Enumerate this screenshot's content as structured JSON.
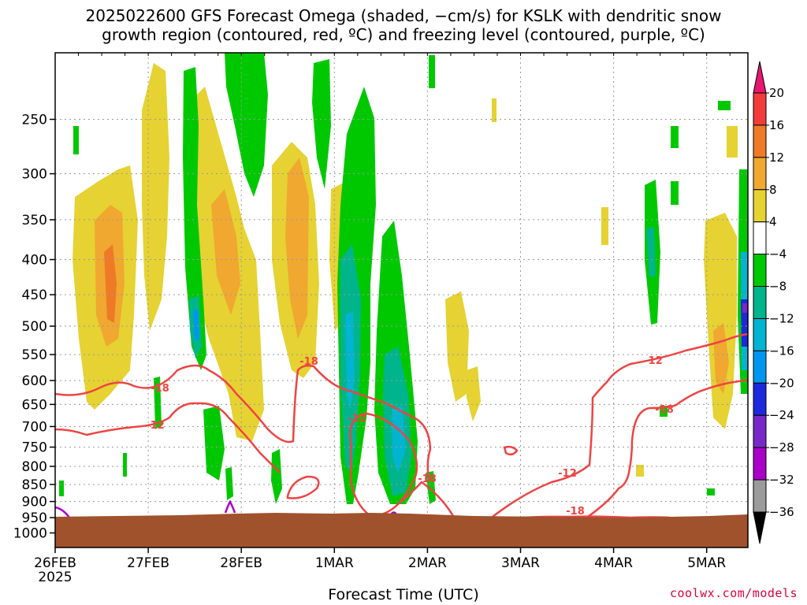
{
  "title_line1": "2025022600 GFS Forecast Omega (shaded, −cm/s) for KSLK with dendritic snow",
  "title_line2": "growth region (contoured, red, ºC) and freezing level (contoured, purple, ºC)",
  "credit": "coolwx.com/models",
  "chart_data": {
    "type": "heatmap",
    "xlabel": "Forecast Time (UTC)",
    "ylabel": "",
    "x_ticks": [
      "26FEB",
      "27FEB",
      "28FEB",
      "1MAR",
      "2MAR",
      "3MAR",
      "4MAR",
      "5MAR"
    ],
    "x_start_year": "2025",
    "y_scale": "log",
    "y_range": [
      1050,
      200
    ],
    "y_ticks": [
      250,
      300,
      350,
      400,
      450,
      500,
      550,
      600,
      650,
      700,
      750,
      800,
      850,
      900,
      950,
      1000
    ],
    "grid": true,
    "colorbar": {
      "ticks": [
        20,
        16,
        12,
        8,
        4,
        -4,
        -8,
        -12,
        -16,
        -20,
        -24,
        -28,
        -32,
        -36
      ],
      "colors": [
        "#e8166e",
        "#f23c3c",
        "#ee7a28",
        "#f0a830",
        "#e6d232",
        "#ffffff",
        "#00c800",
        "#00b48c",
        "#00b4d2",
        "#0096f0",
        "#1e28dc",
        "#7828c8",
        "#aa00c8",
        "#9b9b9b",
        "#000000"
      ]
    },
    "shading_colors": {
      "light_yellow": "#e6d232",
      "gold": "#f0a830",
      "orange": "#ee7a28",
      "green": "#00c800",
      "teal": "#00b48c",
      "cyan": "#00b4d2",
      "blue": "#0096f0",
      "purple": "#7828c8",
      "ground": "#a0522d"
    },
    "contour_labels": [
      "-18",
      "-12",
      "-18",
      "-12",
      "-18",
      "-12",
      "-18",
      "-12"
    ],
    "dgz_color": "#ee4444",
    "freezing_color": "#aa00c8"
  }
}
